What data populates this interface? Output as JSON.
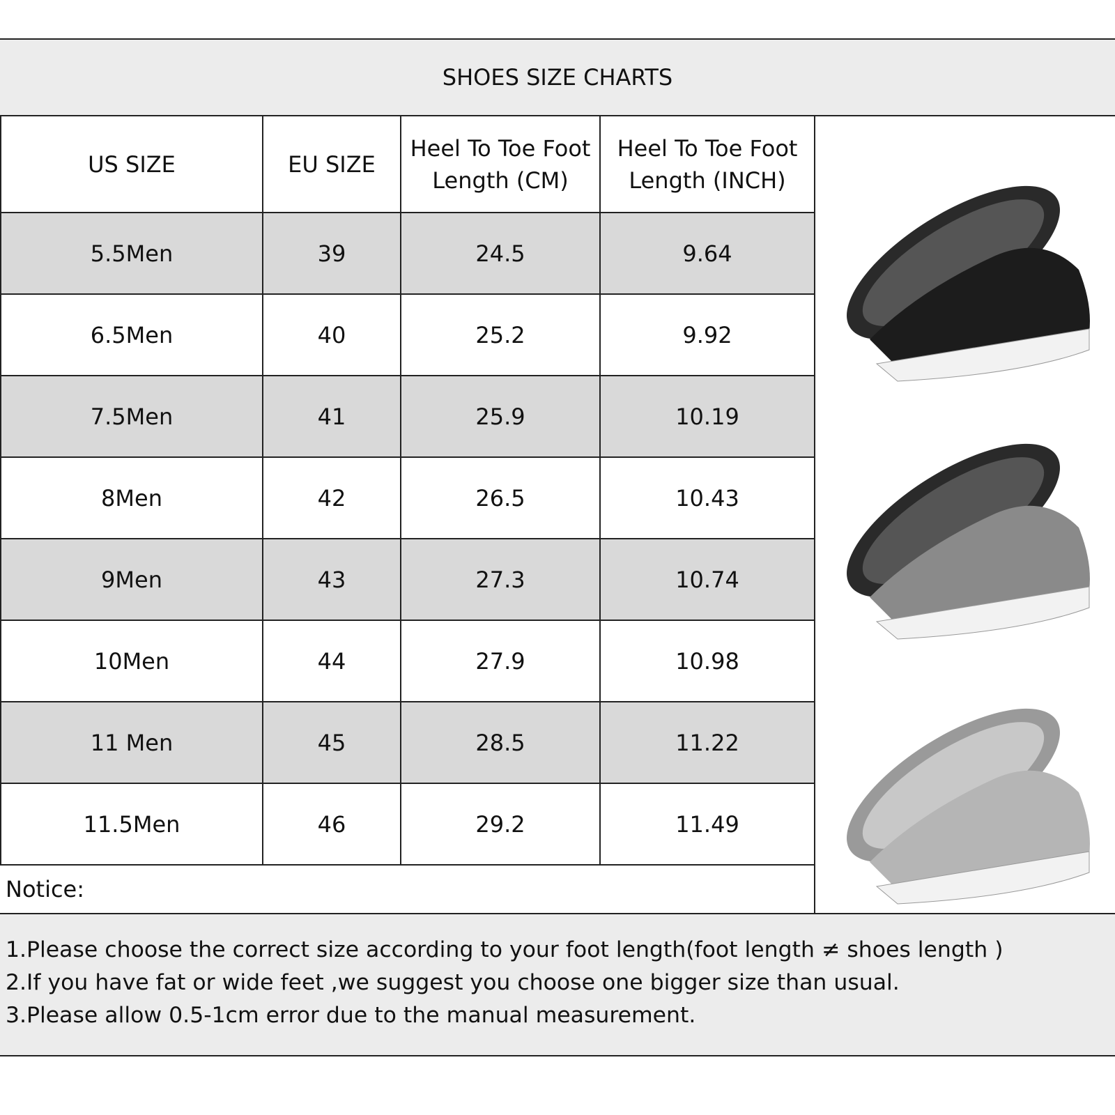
{
  "header": {
    "title": "SHOES SIZE CHARTS"
  },
  "table": {
    "columns": [
      "US SIZE",
      "EU SIZE",
      "Heel To Toe Foot Length (CM)",
      "Heel To Toe Foot Length (INCH)"
    ],
    "rows": [
      [
        "5.5Men",
        "39",
        "24.5",
        "9.64"
      ],
      [
        "6.5Men",
        "40",
        "25.2",
        "9.92"
      ],
      [
        "7.5Men",
        "41",
        "25.9",
        "10.19"
      ],
      [
        "8Men",
        "42",
        "26.5",
        "10.43"
      ],
      [
        "9Men",
        "43",
        "27.3",
        "10.74"
      ],
      [
        "10Men",
        "44",
        "27.9",
        "10.98"
      ],
      [
        "11 Men",
        "45",
        "28.5",
        "11.22"
      ],
      [
        "11.5Men",
        "46",
        "29.2",
        "11.49"
      ]
    ]
  },
  "notice": "Notice:",
  "notes": [
    "1.Please choose the correct size according to your foot length(foot length ≠ shoes length )",
    "2.If you have fat or wide feet ,we suggest you choose one bigger size than usual.",
    "3.Please allow 0.5-1cm error due to the manual measurement."
  ]
}
